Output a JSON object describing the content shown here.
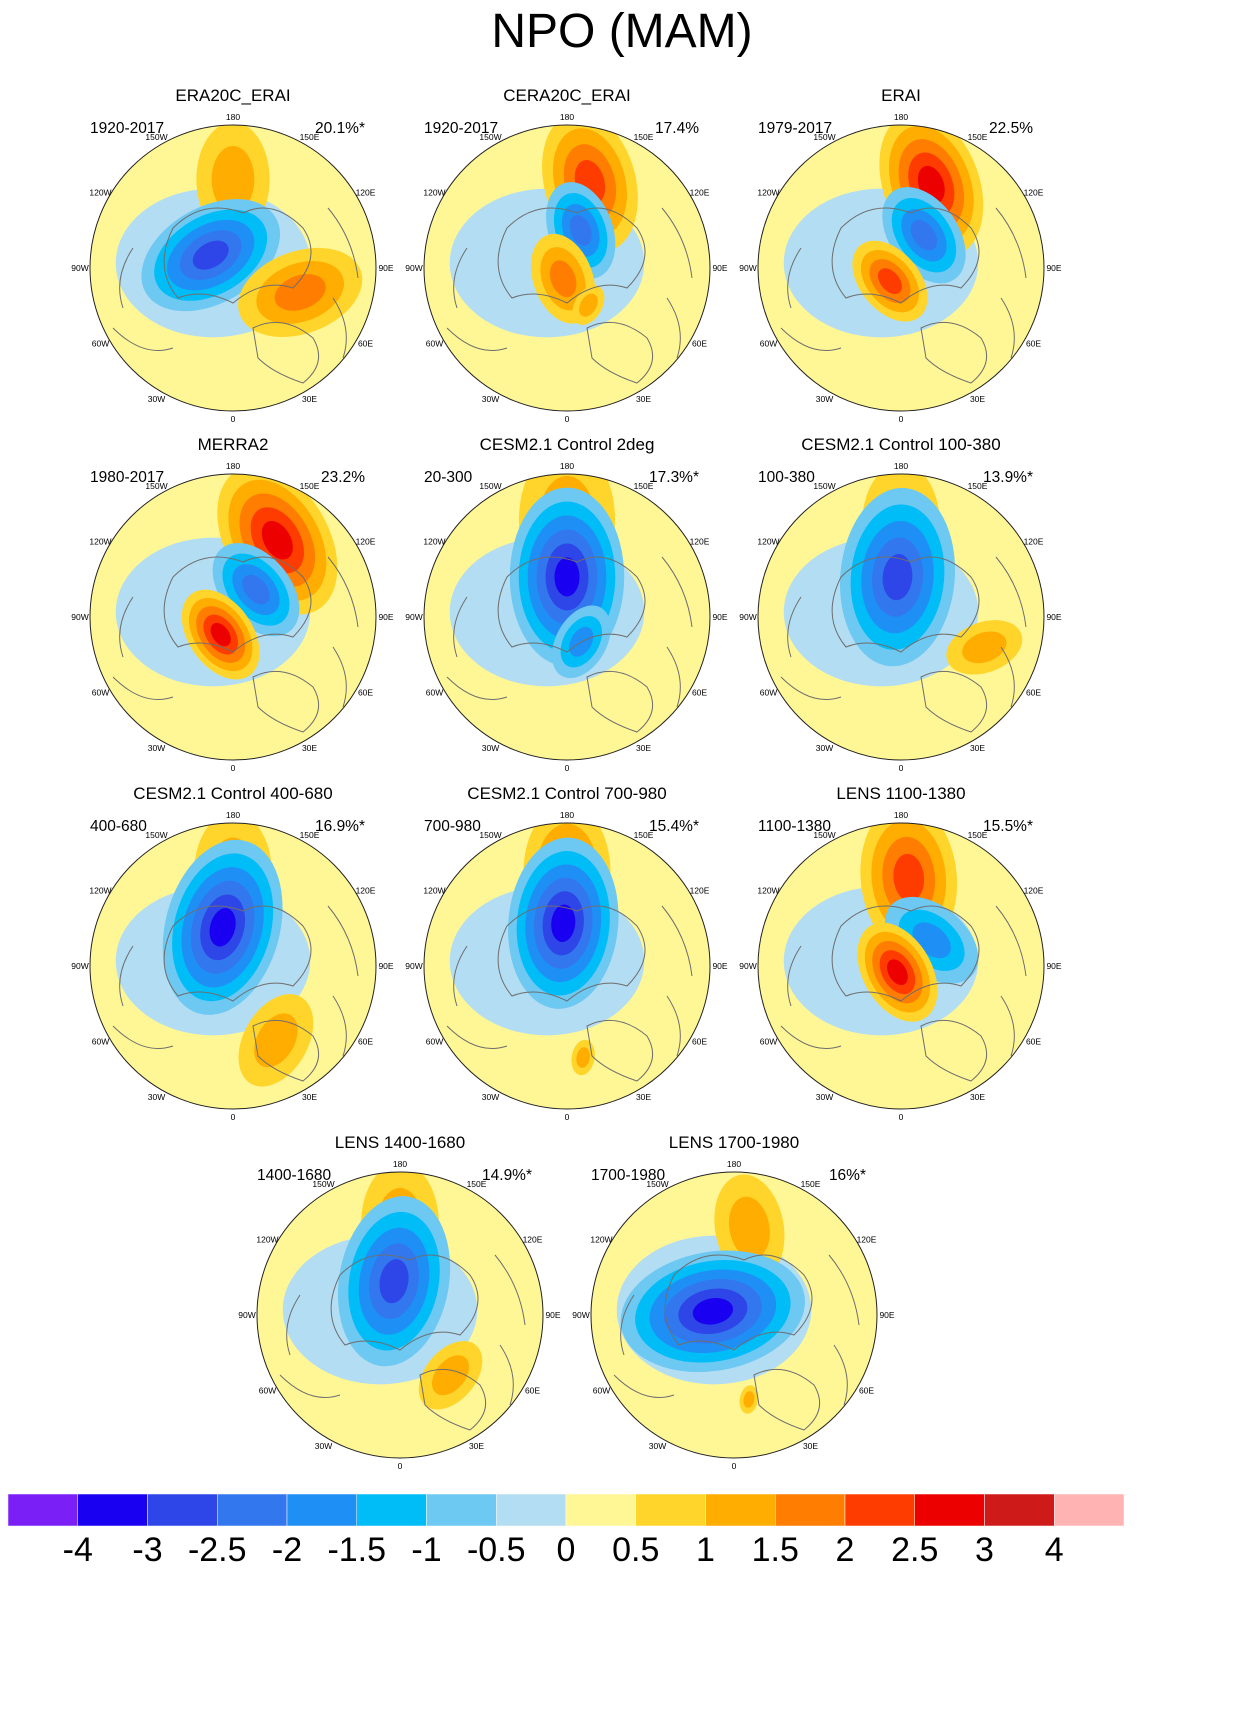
{
  "title": "NPO (MAM)",
  "colors": {
    "land_outline": "#6e6e6e",
    "border": "#222222"
  },
  "colorbar": {
    "levels": [
      "-4",
      "-3",
      "-2.5",
      "-2",
      "-1.5",
      "-1",
      "-0.5",
      "0",
      "0.5",
      "1",
      "1.5",
      "2",
      "2.5",
      "3",
      "4"
    ],
    "colors": [
      "#7a1ff5",
      "#1a00f0",
      "#2e46e8",
      "#3377ee",
      "#1e90f5",
      "#00bdf7",
      "#6dc8f2",
      "#b3ddf2",
      "#fff696",
      "#ffd52b",
      "#ffad00",
      "#ff7d00",
      "#ff3c00",
      "#ec0000",
      "#cf1a1a",
      "#ffb3b3"
    ]
  },
  "longitude_labels": [
    "180",
    "150E",
    "120E",
    "90E",
    "60E",
    "30E",
    "0",
    "30W",
    "60W",
    "90W",
    "120W",
    "150W"
  ],
  "chart_data": [
    {
      "type": "map",
      "title": "ERA20C_ERAI",
      "period": "1920-2017",
      "variance": "20.1%*",
      "anomalies": [
        {
          "lon": 180,
          "colat": 0.62,
          "value": 1.0,
          "size": 0.32
        },
        {
          "lon": 120,
          "colat": 0.18,
          "value": -2.5,
          "size": 0.42
        },
        {
          "lon": 290,
          "colat": 0.5,
          "value": 1.5,
          "size": 0.36
        }
      ]
    },
    {
      "type": "map",
      "title": "CERA20C_ERAI",
      "period": "1920-2017",
      "variance": "17.4%",
      "anomalies": [
        {
          "lon": 195,
          "colat": 0.62,
          "value": 2.0,
          "size": 0.4
        },
        {
          "lon": 200,
          "colat": 0.28,
          "value": -2.0,
          "size": 0.28
        },
        {
          "lon": 20,
          "colat": 0.08,
          "value": 1.5,
          "size": 0.26
        },
        {
          "lon": 330,
          "colat": 0.3,
          "value": 1.0,
          "size": 0.12
        }
      ]
    },
    {
      "type": "map",
      "title": "ERAI",
      "period": "1979-2017",
      "variance": "22.5%",
      "anomalies": [
        {
          "lon": 200,
          "colat": 0.62,
          "value": 2.5,
          "size": 0.42
        },
        {
          "lon": 215,
          "colat": 0.28,
          "value": -2.0,
          "size": 0.3
        },
        {
          "lon": 40,
          "colat": 0.12,
          "value": 2.0,
          "size": 0.26
        }
      ]
    },
    {
      "type": "map",
      "title": "MERRA2",
      "period": "1980-2017",
      "variance": "23.2%",
      "anomalies": [
        {
          "lon": 210,
          "colat": 0.62,
          "value": 2.5,
          "size": 0.45
        },
        {
          "lon": 220,
          "colat": 0.25,
          "value": -2.0,
          "size": 0.3
        },
        {
          "lon": 35,
          "colat": 0.15,
          "value": 2.5,
          "size": 0.28
        }
      ]
    },
    {
      "type": "map",
      "title": "CESM2.1 Control 2deg",
      "period": "20-300",
      "variance": "17.3%*",
      "anomalies": [
        {
          "lon": 180,
          "colat": 0.68,
          "value": 1.0,
          "size": 0.42
        },
        {
          "lon": 180,
          "colat": 0.28,
          "value": -3.0,
          "size": 0.5
        },
        {
          "lon": 330,
          "colat": 0.2,
          "value": -1.5,
          "size": 0.22
        }
      ]
    },
    {
      "type": "map",
      "title": "CESM2.1 Control 100-380",
      "period": "100-380",
      "variance": "13.9%*",
      "anomalies": [
        {
          "lon": 180,
          "colat": 0.65,
          "value": 1.0,
          "size": 0.34
        },
        {
          "lon": 175,
          "colat": 0.28,
          "value": -2.5,
          "size": 0.5
        },
        {
          "lon": 290,
          "colat": 0.62,
          "value": 1.0,
          "size": 0.22
        }
      ]
    },
    {
      "type": "map",
      "title": "CESM2.1 Control 400-680",
      "period": "400-680",
      "variance": "16.9%*",
      "anomalies": [
        {
          "lon": 180,
          "colat": 0.65,
          "value": 1.0,
          "size": 0.34
        },
        {
          "lon": 165,
          "colat": 0.28,
          "value": -3.0,
          "size": 0.5
        },
        {
          "lon": 330,
          "colat": 0.6,
          "value": 1.0,
          "size": 0.28
        }
      ]
    },
    {
      "type": "map",
      "title": "CESM2.1 Control 700-980",
      "period": "700-980",
      "variance": "15.4%*",
      "anomalies": [
        {
          "lon": 180,
          "colat": 0.66,
          "value": 1.5,
          "size": 0.38
        },
        {
          "lon": 175,
          "colat": 0.3,
          "value": -3.0,
          "size": 0.48
        },
        {
          "lon": 350,
          "colat": 0.65,
          "value": 1.0,
          "size": 0.1
        }
      ]
    },
    {
      "type": "map",
      "title": "LENS 1100-1380",
      "period": "1100-1380",
      "variance": "15.5%*",
      "anomalies": [
        {
          "lon": 185,
          "colat": 0.62,
          "value": 2.0,
          "size": 0.42
        },
        {
          "lon": 230,
          "colat": 0.28,
          "value": -1.5,
          "size": 0.3
        },
        {
          "lon": 30,
          "colat": 0.05,
          "value": 2.5,
          "size": 0.3
        }
      ]
    },
    {
      "type": "map",
      "title": "LENS 1400-1680",
      "period": "1400-1680",
      "variance": "14.9%*",
      "anomalies": [
        {
          "lon": 180,
          "colat": 0.64,
          "value": 1.0,
          "size": 0.34
        },
        {
          "lon": 170,
          "colat": 0.24,
          "value": -2.5,
          "size": 0.48
        },
        {
          "lon": 320,
          "colat": 0.55,
          "value": 1.0,
          "size": 0.22
        }
      ]
    },
    {
      "type": "map",
      "title": "LENS 1700-1980",
      "period": "1700-1980",
      "variance": "16%*",
      "anomalies": [
        {
          "lon": 190,
          "colat": 0.62,
          "value": 1.0,
          "size": 0.3
        },
        {
          "lon": 100,
          "colat": 0.15,
          "value": -3.0,
          "size": 0.52
        },
        {
          "lon": 350,
          "colat": 0.6,
          "value": 1.0,
          "size": 0.08
        }
      ]
    }
  ]
}
